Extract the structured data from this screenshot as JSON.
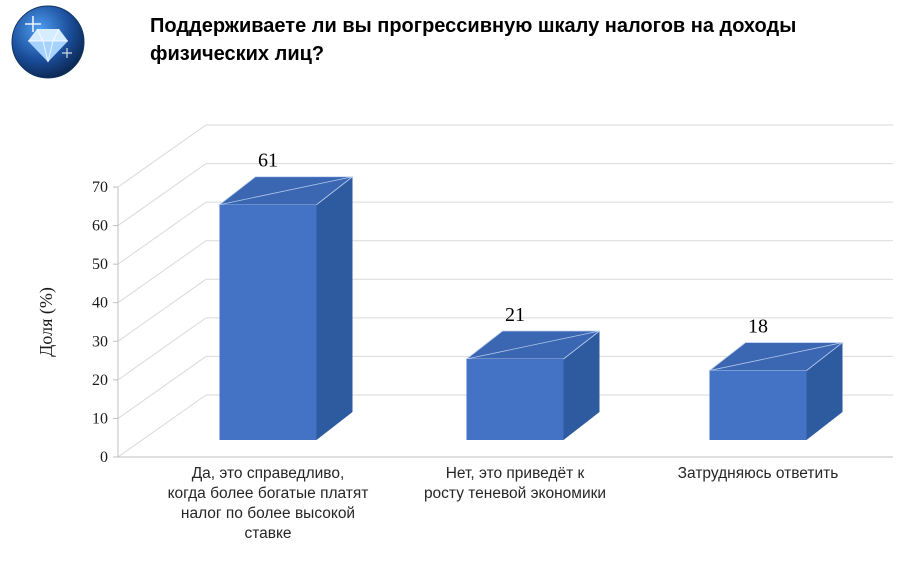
{
  "header": {
    "title": "Поддерживаете ли вы прогрессивную шкалу налогов на доходы\nфизических лиц?",
    "logo": {
      "icon": "diamond-icon",
      "circle_outer": "#081d3f",
      "circle_inner": "#4f9df2",
      "gem_crown": "#d6ecff",
      "gem_pavilion": "#a6d2ff"
    }
  },
  "chart_data": {
    "type": "bar",
    "style": "3d-column",
    "title": "",
    "categories": [
      "Да, это справедливо,\nкогда более богатые платят\nналог по более высокой\nставке",
      "Нет, это приведёт к\nросту теневой экономики",
      "Затрудняюсь ответить"
    ],
    "values": [
      61,
      21,
      18
    ],
    "data_labels": [
      "61",
      "21",
      "18"
    ],
    "xlabel": "",
    "ylabel": "Доля (%)",
    "ylim": [
      0,
      70
    ],
    "yticks": [
      0,
      10,
      20,
      30,
      40,
      50,
      60,
      70
    ],
    "grid": true,
    "legend": false,
    "colors": {
      "bar_front": "#4472C4",
      "bar_side": "#2E5B9F",
      "bar_top": "#3A66B2",
      "bar_edge": "#BFD3F2",
      "gridline": "#D9D9D9",
      "axis": "#BFBFBF",
      "tick_text": "#1a1a1a",
      "label_text": "#000000",
      "category_text": "#262626"
    }
  }
}
